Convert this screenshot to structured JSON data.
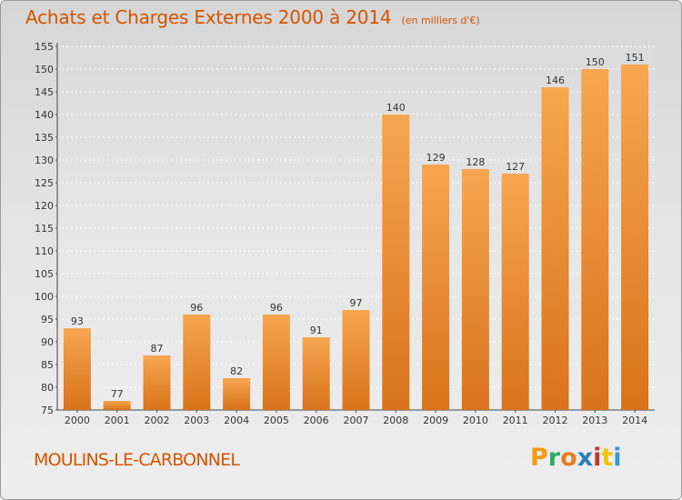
{
  "header": {
    "title": "Achats et Charges Externes 2000 à 2014",
    "subtitle": "(en milliers d'€)"
  },
  "footer": {
    "commune": "MOULINS-LE-CARBONNEL",
    "logo_text": "Proxiti",
    "logo_colors": [
      "#f39c12",
      "#27ae60",
      "#e67e22",
      "#2980b9",
      "#c0392b",
      "#f1c40f",
      "#3498db"
    ]
  },
  "colors": {
    "bar_light": "#f5a34d",
    "bar_dark": "#d9761c",
    "title": "#d35400"
  },
  "chart_data": {
    "type": "bar",
    "categories": [
      "2000",
      "2001",
      "2002",
      "2003",
      "2004",
      "2005",
      "2006",
      "2007",
      "2008",
      "2009",
      "2010",
      "2011",
      "2012",
      "2013",
      "2014"
    ],
    "values": [
      93,
      77,
      87,
      96,
      82,
      96,
      91,
      97,
      140,
      129,
      128,
      127,
      146,
      150,
      151
    ],
    "title": "Achats et Charges Externes 2000 à 2014",
    "xlabel": "",
    "ylabel": "",
    "ylim": [
      75,
      155
    ],
    "yticks": [
      75,
      80,
      85,
      90,
      95,
      100,
      105,
      110,
      115,
      120,
      125,
      130,
      135,
      140,
      145,
      150,
      155
    ],
    "grid": true,
    "legend": "none"
  }
}
